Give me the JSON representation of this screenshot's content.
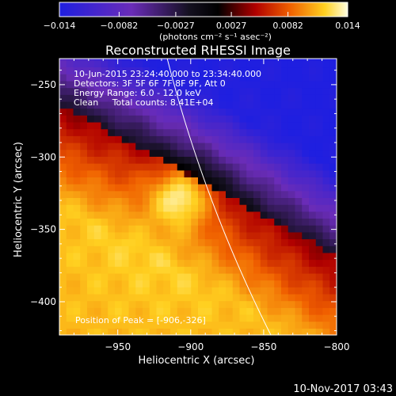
{
  "chart_data": {
    "type": "heatmap",
    "title": "Reconstructed RHESSI Image",
    "xlabel": "Heliocentric X (arcsec)",
    "ylabel": "Heliocentric Y (arcsec)",
    "xlim": [
      -990,
      -800
    ],
    "ylim": [
      -423,
      -232
    ],
    "x_ticks": [
      -950,
      -900,
      -850,
      -800
    ],
    "y_ticks": [
      -250,
      -300,
      -350,
      -400
    ],
    "annotations": [
      "10-Jun-2015 23:24:40.000 to 23:34:40.000",
      "Detectors: 3F 5F 6F 7F 8F 9F, Att 0",
      "Energy Range: 6.0 - 12.0 keV",
      "Clean     Total counts: 8.41E+04"
    ],
    "peak_label": "Position of Peak = [-906,-326]",
    "peak": [
      -906,
      -326
    ],
    "colorbar": {
      "ticks": [
        -0.014,
        -0.0082,
        -0.0027,
        0.0027,
        0.0082,
        0.014
      ],
      "tick_labels": [
        "−0.014",
        "−0.0082",
        "−0.0027",
        "0.0027",
        "0.0082",
        "0.014"
      ],
      "unit": "(photons cm⁻² s⁻¹ asec⁻²)",
      "range": [
        -0.014,
        0.014
      ]
    },
    "limb": {
      "center": [
        0,
        0
      ],
      "radius_arcsec": 945
    }
  },
  "footer": {
    "date": "10-Nov-2017 03:43"
  }
}
